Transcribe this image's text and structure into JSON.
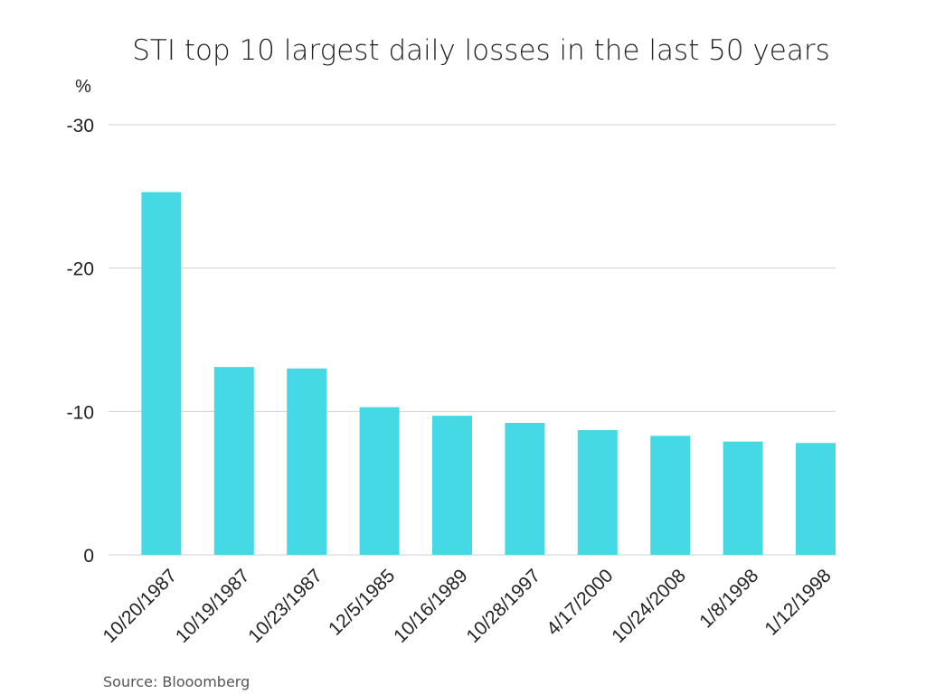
{
  "chart_data": {
    "type": "bar",
    "title": "STI top 10 largest daily losses in the last 50 years",
    "ylabel": "%",
    "xlabel": "",
    "categories": [
      "10/20/1987",
      "10/19/1987",
      "10/23/1987",
      "12/5/1985",
      "10/16/1989",
      "10/28/1997",
      "4/17/2000",
      "10/24/2008",
      "1/8/1998",
      "1/12/1998"
    ],
    "values": [
      -25.3,
      -13.1,
      -13.0,
      -10.3,
      -9.7,
      -9.2,
      -8.7,
      -8.3,
      -7.9,
      -7.8
    ],
    "ylim": [
      0,
      -30
    ],
    "yticks": [
      0,
      -10,
      -20,
      -30
    ],
    "ytick_labels": [
      "0",
      "-10",
      "-20",
      "-30"
    ],
    "grid": true,
    "legend": "none",
    "bar_color": "#45D9E6",
    "grid_color": "#D0D0D0",
    "source": "Source: Blooomberg"
  }
}
